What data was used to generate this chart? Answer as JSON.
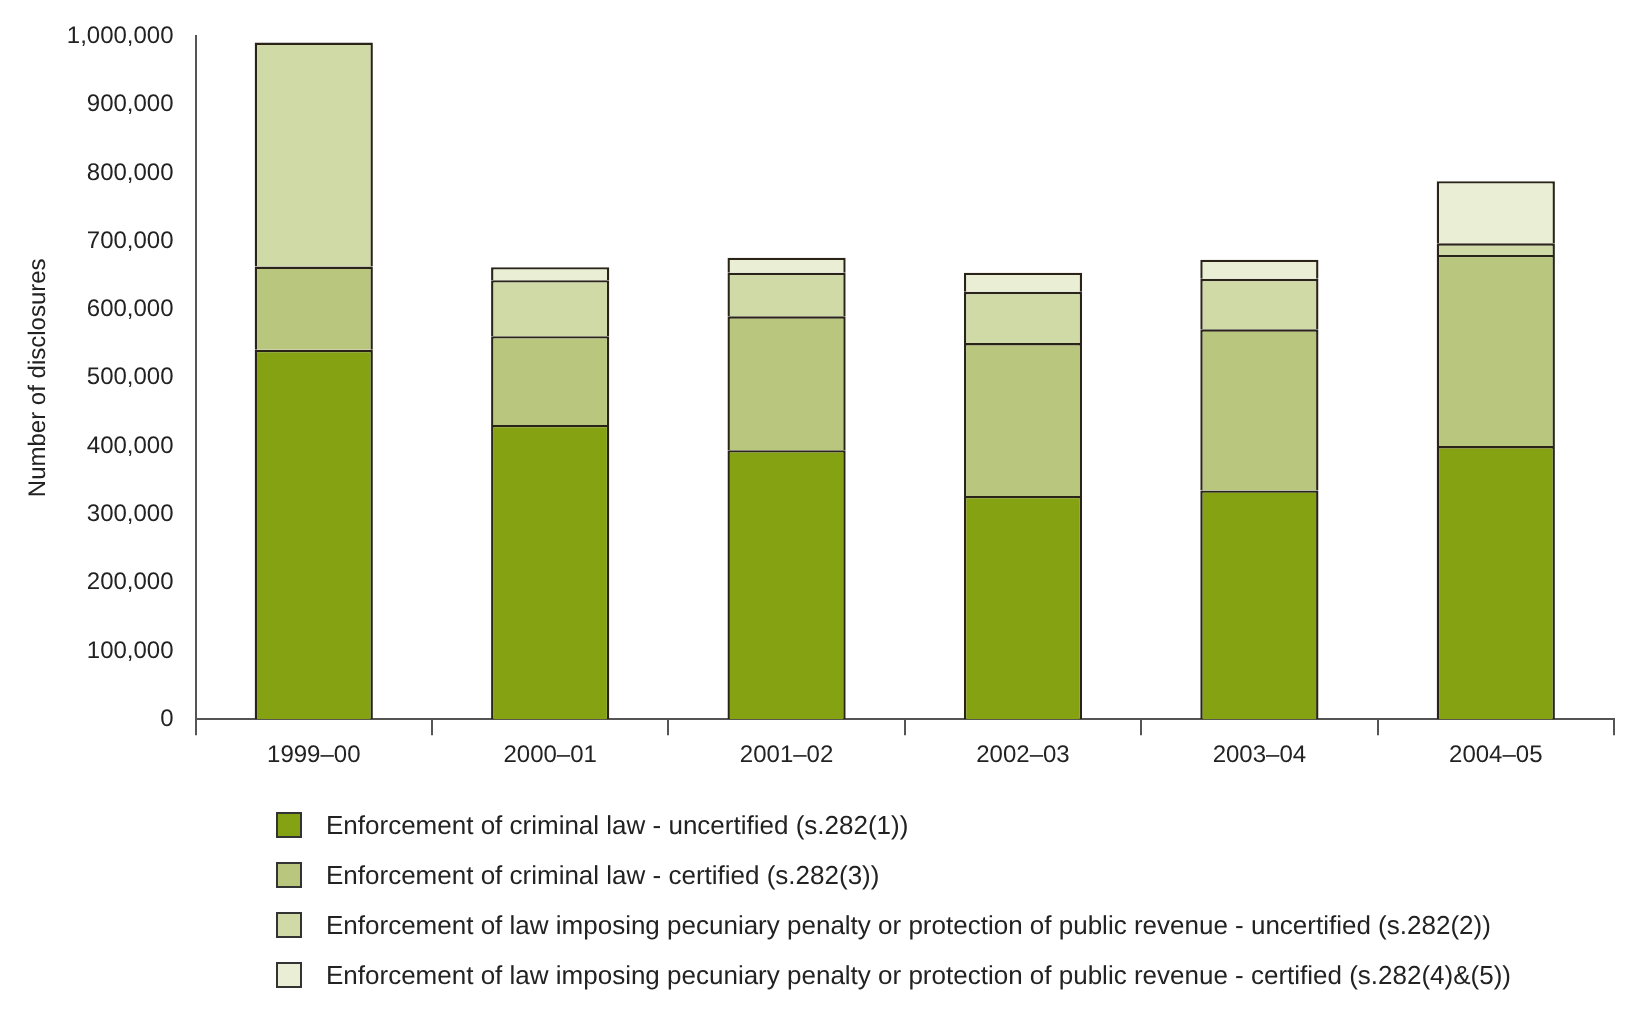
{
  "chart_data": {
    "type": "bar",
    "stacked": true,
    "ylabel": "Number of disclosures",
    "categories": [
      "1999–00",
      "2000–01",
      "2001–02",
      "2002–03",
      "2003–04",
      "2004–05"
    ],
    "series": [
      {
        "name": "Enforcement of criminal law - uncertified (s.282(1))",
        "color": "#84a212",
        "values": [
          541000,
          431000,
          394000,
          327000,
          335000,
          400000
        ]
      },
      {
        "name": "Enforcement of criminal law - certified (s.282(3))",
        "color": "#b9c77e",
        "values": [
          122000,
          130000,
          196000,
          224000,
          236000,
          280000
        ]
      },
      {
        "name": "Enforcement of law imposing pecuniary penalty or protection of public revenue - uncertified (s.282(2))",
        "color": "#d0daa6",
        "values": [
          328000,
          82000,
          64000,
          75000,
          74000,
          17000
        ]
      },
      {
        "name": "Enforcement of law imposing pecuniary penalty or protection of public revenue - certified (s.282(4)&(5))",
        "color": "#e9eed4",
        "values": [
          null,
          19000,
          22000,
          28000,
          28000,
          91000
        ]
      }
    ],
    "ylim": [
      0,
      1000000
    ],
    "yticks": [
      0,
      {
        "value": 100000,
        "label": "100,000"
      },
      {
        "value": 200000,
        "label": "200,000"
      },
      {
        "value": 300000,
        "label": "300,000"
      },
      {
        "value": 400000,
        "label": "400,000"
      },
      {
        "value": 500000,
        "label": "500,000"
      },
      {
        "value": 600000,
        "label": "600,000"
      },
      {
        "value": 700000,
        "label": "700,000"
      },
      {
        "value": 800000,
        "label": "800,000"
      },
      {
        "value": 900000,
        "label": "900,000"
      },
      {
        "value": 1000000,
        "label": "1,000,000"
      }
    ],
    "grid": false,
    "legend": "bottom"
  }
}
